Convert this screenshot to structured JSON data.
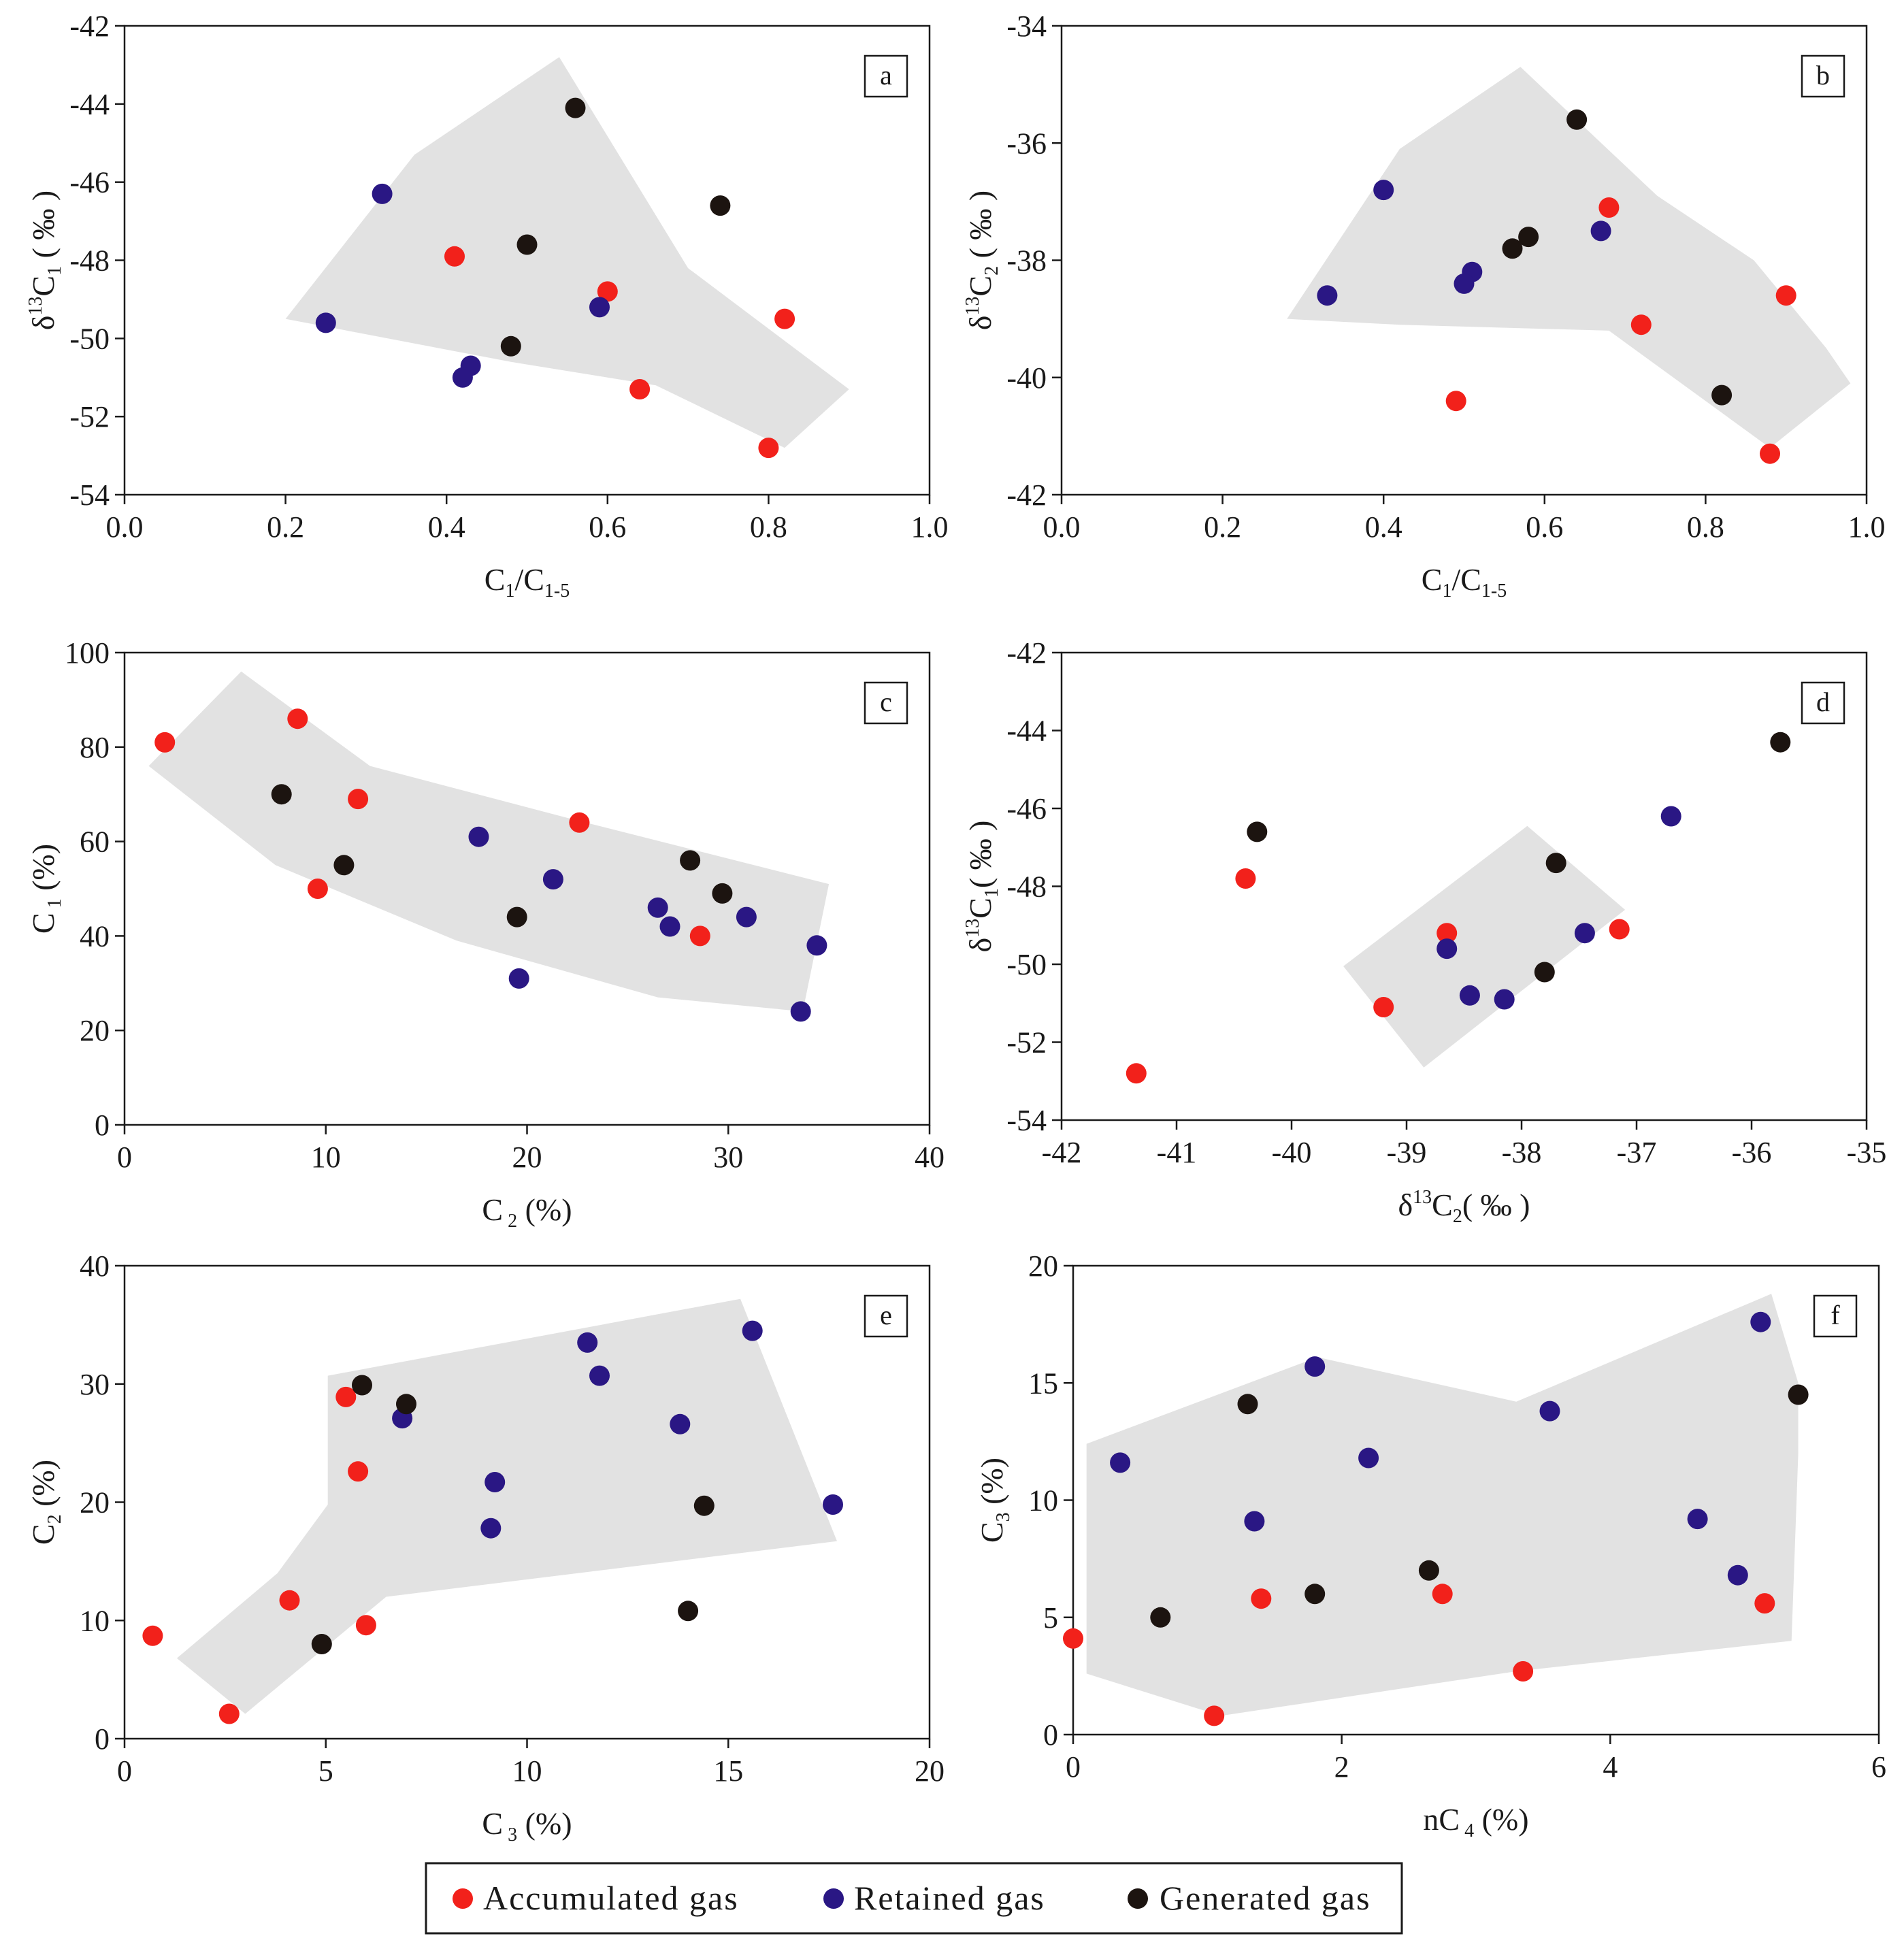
{
  "colors": {
    "accumulated": "#f2211b",
    "retained": "#2a1784",
    "generated": "#1c1410",
    "envelope": "#e2e2e2",
    "axis": "#1a1a1a"
  },
  "legend": {
    "items": [
      {
        "key": "accumulated",
        "label": "Accumulated gas"
      },
      {
        "key": "retained",
        "label": "Retained gas"
      },
      {
        "key": "generated",
        "label": "Generated gas"
      }
    ]
  },
  "chart_data": [
    {
      "id": "a",
      "type": "scatter",
      "panel_label": "a",
      "xlabel": {
        "parts": [
          [
            "C",
            "n"
          ],
          [
            "1",
            "sub"
          ],
          [
            "/C",
            "n"
          ],
          [
            "1-5",
            "sub"
          ]
        ]
      },
      "ylabel": {
        "parts": [
          [
            "δ",
            "n"
          ],
          [
            "13",
            "sup"
          ],
          [
            "C",
            "n"
          ],
          [
            "1",
            "sub"
          ],
          [
            " ( ‰ )",
            "n"
          ]
        ]
      },
      "xlim": [
        0,
        1
      ],
      "ylim": [
        -54,
        -42
      ],
      "xticks": [
        0,
        0.2,
        0.4,
        0.6,
        0.8,
        1.0
      ],
      "xtick_labels": [
        "0.0",
        "0.2",
        "0.4",
        "0.6",
        "0.8",
        "1.0"
      ],
      "yticks": [
        -54,
        -52,
        -50,
        -48,
        -46,
        -44,
        -42
      ],
      "ytick_labels": [
        "-54",
        "-52",
        "-50",
        "-48",
        "-46",
        "-44",
        "-42"
      ],
      "envelope": [
        [
          0.2,
          -49.5
        ],
        [
          0.36,
          -45.3
        ],
        [
          0.54,
          -42.8
        ],
        [
          0.7,
          -48.2
        ],
        [
          0.9,
          -51.3
        ],
        [
          0.82,
          -52.8
        ],
        [
          0.66,
          -51.2
        ],
        [
          0.48,
          -50.6
        ],
        [
          0.2,
          -49.5
        ]
      ],
      "series": [
        {
          "key": "accumulated",
          "points": [
            [
              0.41,
              -47.9
            ],
            [
              0.6,
              -48.8
            ],
            [
              0.82,
              -49.5
            ],
            [
              0.64,
              -51.3
            ],
            [
              0.8,
              -52.8
            ]
          ]
        },
        {
          "key": "retained",
          "points": [
            [
              0.32,
              -46.3
            ],
            [
              0.25,
              -49.6
            ],
            [
              0.43,
              -50.7
            ],
            [
              0.42,
              -51.0
            ],
            [
              0.59,
              -49.2
            ]
          ]
        },
        {
          "key": "generated",
          "points": [
            [
              0.56,
              -44.1
            ],
            [
              0.5,
              -47.6
            ],
            [
              0.74,
              -46.6
            ],
            [
              0.48,
              -50.2
            ]
          ]
        }
      ]
    },
    {
      "id": "b",
      "type": "scatter",
      "panel_label": "b",
      "xlabel": {
        "parts": [
          [
            "C",
            "n"
          ],
          [
            "1",
            "sub"
          ],
          [
            "/C",
            "n"
          ],
          [
            "1-5",
            "sub"
          ]
        ]
      },
      "ylabel": {
        "parts": [
          [
            "δ",
            "n"
          ],
          [
            "13",
            "sup"
          ],
          [
            "C",
            "n"
          ],
          [
            "2",
            "sub"
          ],
          [
            " ( ‰ )",
            "n"
          ]
        ]
      },
      "xlim": [
        0,
        1
      ],
      "ylim": [
        -42,
        -34
      ],
      "xticks": [
        0,
        0.2,
        0.4,
        0.6,
        0.8,
        1.0
      ],
      "xtick_labels": [
        "0.0",
        "0.2",
        "0.4",
        "0.6",
        "0.8",
        "1.0"
      ],
      "yticks": [
        -42,
        -40,
        -38,
        -36,
        -34
      ],
      "ytick_labels": [
        "-42",
        "-40",
        "-38",
        "-36",
        "-34"
      ],
      "envelope": [
        [
          0.28,
          -39.0
        ],
        [
          0.42,
          -36.1
        ],
        [
          0.57,
          -34.7
        ],
        [
          0.74,
          -36.9
        ],
        [
          0.86,
          -38.0
        ],
        [
          0.95,
          -39.5
        ],
        [
          0.98,
          -40.1
        ],
        [
          0.88,
          -41.2
        ],
        [
          0.68,
          -39.2
        ],
        [
          0.42,
          -39.1
        ],
        [
          0.28,
          -39.0
        ]
      ],
      "series": [
        {
          "key": "accumulated",
          "points": [
            [
              0.68,
              -37.1
            ],
            [
              0.9,
              -38.6
            ],
            [
              0.72,
              -39.1
            ],
            [
              0.49,
              -40.4
            ],
            [
              0.88,
              -41.3
            ]
          ]
        },
        {
          "key": "retained",
          "points": [
            [
              0.4,
              -36.8
            ],
            [
              0.33,
              -38.6
            ],
            [
              0.51,
              -38.2
            ],
            [
              0.5,
              -38.4
            ],
            [
              0.67,
              -37.5
            ]
          ]
        },
        {
          "key": "generated",
          "points": [
            [
              0.64,
              -35.6
            ],
            [
              0.58,
              -37.6
            ],
            [
              0.56,
              -37.8
            ],
            [
              0.82,
              -40.3
            ]
          ]
        }
      ]
    },
    {
      "id": "c",
      "type": "scatter",
      "panel_label": "c",
      "xlabel": {
        "parts": [
          [
            "C",
            "n"
          ],
          [
            " 2",
            "sub"
          ],
          [
            " (%)",
            "n"
          ]
        ]
      },
      "ylabel": {
        "parts": [
          [
            "C",
            "n"
          ],
          [
            " 1",
            "sub"
          ],
          [
            " (%)",
            "n"
          ]
        ]
      },
      "xlim": [
        0,
        40
      ],
      "ylim": [
        0,
        100
      ],
      "xticks": [
        0,
        10,
        20,
        30,
        40
      ],
      "xtick_labels": [
        "0",
        "10",
        "20",
        "30",
        "40"
      ],
      "yticks": [
        0,
        20,
        40,
        60,
        80,
        100
      ],
      "ytick_labels": [
        "0",
        "20",
        "40",
        "60",
        "80",
        "100"
      ],
      "envelope": [
        [
          1.2,
          76
        ],
        [
          5.8,
          96
        ],
        [
          12.2,
          76
        ],
        [
          22,
          65
        ],
        [
          35,
          51
        ],
        [
          33.7,
          24
        ],
        [
          26.5,
          27
        ],
        [
          16.5,
          39
        ],
        [
          7.5,
          55
        ],
        [
          1.2,
          76
        ]
      ],
      "series": [
        {
          "key": "accumulated",
          "points": [
            [
              2,
              81
            ],
            [
              8.6,
              86
            ],
            [
              11.6,
              69
            ],
            [
              9.6,
              50
            ],
            [
              22.6,
              64
            ],
            [
              28.6,
              40
            ]
          ]
        },
        {
          "key": "retained",
          "points": [
            [
              17.6,
              61
            ],
            [
              21.3,
              52
            ],
            [
              26.5,
              46
            ],
            [
              27.1,
              42
            ],
            [
              30.9,
              44
            ],
            [
              34.4,
              38
            ],
            [
              33.6,
              24
            ],
            [
              19.6,
              31
            ]
          ]
        },
        {
          "key": "generated",
          "points": [
            [
              7.8,
              70
            ],
            [
              10.9,
              55
            ],
            [
              19.5,
              44
            ],
            [
              28.1,
              56
            ],
            [
              29.7,
              49
            ]
          ]
        }
      ]
    },
    {
      "id": "d",
      "type": "scatter",
      "panel_label": "d",
      "xlabel": {
        "parts": [
          [
            "δ",
            "n"
          ],
          [
            "13",
            "sup"
          ],
          [
            "C",
            "n"
          ],
          [
            "2",
            "sub"
          ],
          [
            "( ‰ )",
            "n"
          ]
        ]
      },
      "ylabel": {
        "parts": [
          [
            "δ",
            "n"
          ],
          [
            "13",
            "sup"
          ],
          [
            "C",
            "n"
          ],
          [
            "1",
            "sub"
          ],
          [
            "( ‰ )",
            "n"
          ]
        ]
      },
      "xlim": [
        -42,
        -35
      ],
      "ylim": [
        -54,
        -42
      ],
      "xticks": [
        -42,
        -41,
        -40,
        -39,
        -38,
        -37,
        -36,
        -35
      ],
      "xtick_labels": [
        "-42",
        "-41",
        "-40",
        "-39",
        "-38",
        "-37",
        "-36",
        "-35"
      ],
      "yticks": [
        -54,
        -52,
        -50,
        -48,
        -46,
        -44,
        -42
      ],
      "ytick_labels": [
        "-54",
        "-52",
        "-50",
        "-48",
        "-46",
        "-44",
        "-42"
      ],
      "envelope": [
        [
          -39.55,
          -50.05
        ],
        [
          -37.95,
          -46.45
        ],
        [
          -37.1,
          -48.6
        ],
        [
          -38.85,
          -52.65
        ],
        [
          -39.55,
          -50.05
        ]
      ],
      "series": [
        {
          "key": "accumulated",
          "points": [
            [
              -40.4,
              -47.8
            ],
            [
              -38.65,
              -49.2
            ],
            [
              -37.15,
              -49.1
            ],
            [
              -39.2,
              -51.1
            ],
            [
              -41.35,
              -52.8
            ]
          ]
        },
        {
          "key": "retained",
          "points": [
            [
              -36.7,
              -46.2
            ],
            [
              -37.45,
              -49.2
            ],
            [
              -38.65,
              -49.6
            ],
            [
              -38.45,
              -50.8
            ],
            [
              -38.15,
              -50.9
            ]
          ]
        },
        {
          "key": "generated",
          "points": [
            [
              -35.75,
              -44.3
            ],
            [
              -40.3,
              -46.6
            ],
            [
              -37.7,
              -47.4
            ],
            [
              -37.8,
              -50.2
            ]
          ]
        }
      ]
    },
    {
      "id": "e",
      "type": "scatter",
      "panel_label": "e",
      "xlabel": {
        "parts": [
          [
            "C",
            "n"
          ],
          [
            " 3",
            "sub"
          ],
          [
            " (%)",
            "n"
          ]
        ]
      },
      "ylabel": {
        "parts": [
          [
            "C",
            "n"
          ],
          [
            "2",
            "sub"
          ],
          [
            " (%)",
            "n"
          ]
        ]
      },
      "xlim": [
        0,
        20
      ],
      "ylim": [
        0,
        40
      ],
      "xticks": [
        0,
        5,
        10,
        15,
        20
      ],
      "xtick_labels": [
        "0",
        "5",
        "10",
        "15",
        "20"
      ],
      "yticks": [
        0,
        10,
        20,
        30,
        40
      ],
      "ytick_labels": [
        "0",
        "10",
        "20",
        "30",
        "40"
      ],
      "envelope": [
        [
          1.3,
          6.8
        ],
        [
          3.8,
          14
        ],
        [
          5.05,
          19.8
        ],
        [
          5.05,
          30.7
        ],
        [
          15.3,
          37.2
        ],
        [
          17.7,
          16.7
        ],
        [
          6.5,
          12
        ],
        [
          3,
          2.1
        ],
        [
          1.3,
          6.8
        ]
      ],
      "series": [
        {
          "key": "accumulated",
          "points": [
            [
              5.5,
              28.9
            ],
            [
              5.8,
              22.6
            ],
            [
              4.1,
              11.7
            ],
            [
              6.0,
              9.6
            ],
            [
              0.7,
              8.7
            ],
            [
              2.6,
              2.1
            ]
          ]
        },
        {
          "key": "retained",
          "points": [
            [
              11.5,
              33.5
            ],
            [
              11.8,
              30.7
            ],
            [
              15.6,
              34.5
            ],
            [
              6.9,
              27.1
            ],
            [
              13.8,
              26.6
            ],
            [
              9.2,
              21.7
            ],
            [
              9.1,
              17.8
            ],
            [
              17.6,
              19.8
            ]
          ]
        },
        {
          "key": "generated",
          "points": [
            [
              5.9,
              29.9
            ],
            [
              7.0,
              28.3
            ],
            [
              14.4,
              19.7
            ],
            [
              14.0,
              10.8
            ],
            [
              4.9,
              8.0
            ]
          ]
        }
      ]
    },
    {
      "id": "f",
      "type": "scatter",
      "panel_label": "f",
      "xlabel": {
        "parts": [
          [
            "n",
            "n"
          ],
          [
            "C",
            "n"
          ],
          [
            " 4",
            "sub"
          ],
          [
            " (%)",
            "n"
          ]
        ]
      },
      "ylabel": {
        "parts": [
          [
            "C",
            "n"
          ],
          [
            "3",
            "sub"
          ],
          [
            " (%)",
            "n"
          ]
        ]
      },
      "xlim": [
        0,
        6
      ],
      "ylim": [
        0,
        20
      ],
      "xticks": [
        0,
        2,
        4,
        6
      ],
      "xtick_labels": [
        "0",
        "2",
        "4",
        "6"
      ],
      "yticks": [
        0,
        5,
        10,
        15,
        20
      ],
      "ytick_labels": [
        "0",
        "5",
        "10",
        "15",
        "20"
      ],
      "envelope": [
        [
          0.1,
          12.4
        ],
        [
          1.82,
          16.1
        ],
        [
          3.3,
          14.2
        ],
        [
          5.2,
          18.8
        ],
        [
          5.4,
          15
        ],
        [
          5.4,
          12
        ],
        [
          5.35,
          4
        ],
        [
          3.3,
          2.7
        ],
        [
          1.1,
          0.8
        ],
        [
          0.1,
          2.6
        ],
        [
          0.1,
          12.4
        ]
      ],
      "series": [
        {
          "key": "accumulated",
          "points": [
            [
              0,
              4.1
            ],
            [
              1.4,
              5.8
            ],
            [
              2.75,
              6.0
            ],
            [
              1.05,
              0.8
            ],
            [
              3.35,
              2.7
            ],
            [
              5.15,
              5.6
            ]
          ]
        },
        {
          "key": "retained",
          "points": [
            [
              0.35,
              11.6
            ],
            [
              1.35,
              9.1
            ],
            [
              1.8,
              15.7
            ],
            [
              2.2,
              11.8
            ],
            [
              3.55,
              13.8
            ],
            [
              4.65,
              9.2
            ],
            [
              4.95,
              6.8
            ],
            [
              5.12,
              17.6
            ]
          ]
        },
        {
          "key": "generated",
          "points": [
            [
              0.65,
              5.0
            ],
            [
              1.3,
              14.1
            ],
            [
              1.8,
              6.0
            ],
            [
              2.65,
              7.0
            ],
            [
              5.4,
              14.5
            ]
          ]
        }
      ]
    }
  ]
}
